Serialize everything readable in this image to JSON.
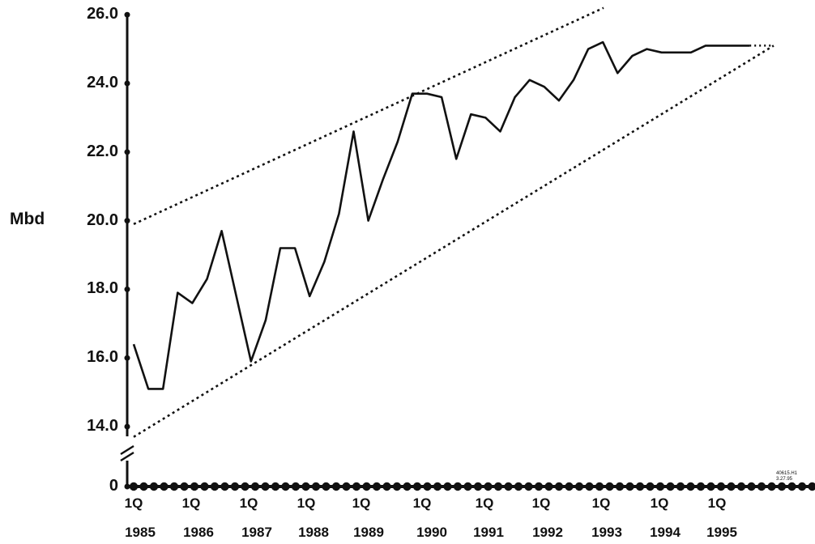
{
  "chart_data": {
    "type": "line",
    "ylabel": "Mbd",
    "y_axis_break": true,
    "y_ticks": [
      "26.0",
      "24.0",
      "22.0",
      "20.0",
      "18.0",
      "16.0",
      "14.0",
      "0"
    ],
    "ylim": [
      14,
      26
    ],
    "x_tick_quarter_labels": [
      "1Q",
      "1Q",
      "1Q",
      "1Q",
      "1Q",
      "1Q",
      "1Q",
      "1Q",
      "1Q",
      "1Q",
      "1Q"
    ],
    "x_tick_year_labels": [
      "1985",
      "1986",
      "1987",
      "1988",
      "1989",
      "1990",
      "1991",
      "1992",
      "1993",
      "1994",
      "1995"
    ],
    "series": [
      {
        "style": "solid",
        "x": [
          "1985Q1",
          "1985Q2",
          "1985Q3",
          "1985Q4",
          "1986Q1",
          "1986Q2",
          "1986Q3",
          "1986Q4",
          "1987Q1",
          "1987Q2",
          "1987Q3",
          "1987Q4",
          "1988Q1",
          "1988Q2",
          "1988Q3",
          "1988Q4",
          "1989Q1",
          "1989Q2",
          "1989Q3",
          "1989Q4",
          "1990Q1",
          "1990Q2",
          "1990Q3",
          "1990Q4",
          "1991Q1",
          "1991Q2",
          "1991Q3",
          "1991Q4",
          "1992Q1",
          "1992Q2",
          "1992Q3",
          "1992Q4",
          "1993Q1",
          "1993Q2",
          "1993Q3",
          "1993Q4",
          "1994Q1",
          "1994Q2",
          "1994Q3",
          "1994Q4",
          "1995Q1",
          "1995Q2",
          "1995Q3"
        ],
        "values": [
          16.4,
          15.1,
          15.1,
          17.9,
          17.6,
          18.3,
          19.7,
          17.8,
          15.9,
          17.1,
          19.2,
          19.2,
          17.8,
          18.8,
          20.2,
          22.6,
          20.0,
          21.2,
          22.3,
          23.7,
          23.7,
          23.6,
          21.8,
          23.1,
          23.0,
          22.6,
          23.6,
          24.1,
          23.9,
          23.5,
          24.1,
          25.0,
          25.2,
          24.3,
          24.8,
          25.0,
          24.9,
          24.9,
          24.9,
          25.1,
          25.1,
          25.1,
          25.1
        ]
      },
      {
        "style": "dotted",
        "x": [
          "1995Q3",
          "1996Q1"
        ],
        "values": [
          25.1,
          25.1
        ]
      },
      {
        "style": "dashed",
        "x": [
          "1985Q1",
          "1993Q1"
        ],
        "values": [
          19.9,
          26.2
        ]
      },
      {
        "style": "dashed",
        "x": [
          "1985Q1",
          "1996Q1"
        ],
        "values": [
          13.7,
          25.1
        ]
      }
    ],
    "zero_line": {
      "x_start": "1985Q1",
      "x_end": "1996Q1",
      "value": 0
    }
  },
  "footnote": {
    "line1": "40615.H1",
    "line2": "3.27.95"
  },
  "colors": {
    "ink": "#111111",
    "background": "#ffffff"
  }
}
